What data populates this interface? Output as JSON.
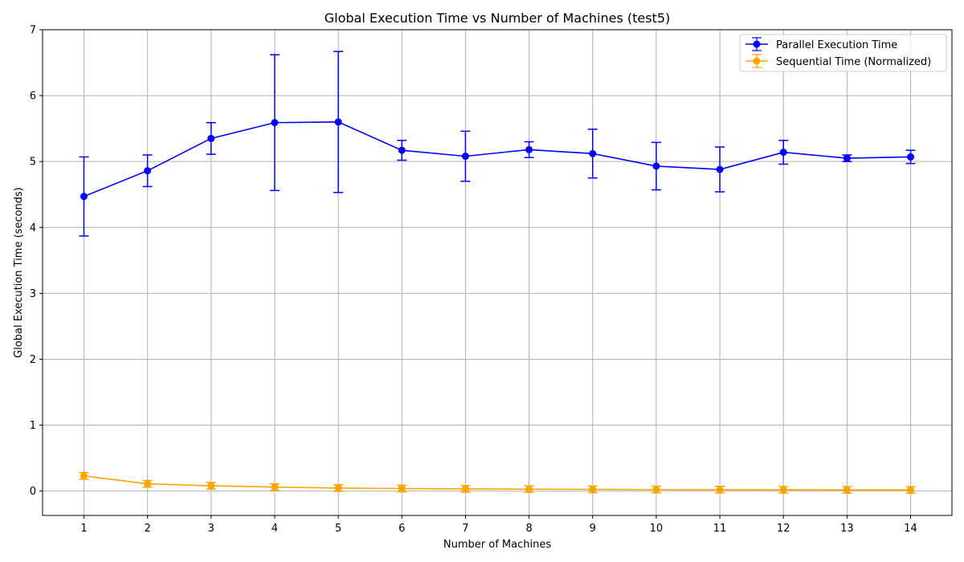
{
  "chart_data": {
    "type": "line",
    "title": "Global Execution Time vs Number of Machines (test5)",
    "xlabel": "Number of Machines",
    "ylabel": "Global Execution Time (seconds)",
    "x": [
      1,
      2,
      3,
      4,
      5,
      6,
      7,
      8,
      9,
      10,
      11,
      12,
      13,
      14
    ],
    "xlim": [
      0.35,
      14.65
    ],
    "ylim": [
      -0.37,
      7.0
    ],
    "yticks": [
      0,
      1,
      2,
      3,
      4,
      5,
      6,
      7
    ],
    "grid": true,
    "legend_position": "top-right",
    "series": [
      {
        "name": "Parallel Execution Time",
        "color": "#0000ff",
        "marker": "circle",
        "values": [
          4.47,
          4.86,
          5.35,
          5.59,
          5.6,
          5.17,
          5.08,
          5.18,
          5.12,
          4.93,
          4.88,
          5.14,
          5.05,
          5.07
        ],
        "errors": [
          0.6,
          0.24,
          0.24,
          1.03,
          1.07,
          0.15,
          0.38,
          0.12,
          0.37,
          0.36,
          0.34,
          0.18,
          0.05,
          0.1
        ]
      },
      {
        "name": "Sequential Time (Normalized)",
        "color": "#ffa500",
        "marker": "circle",
        "values": [
          0.23,
          0.11,
          0.08,
          0.06,
          0.045,
          0.038,
          0.033,
          0.029,
          0.026,
          0.023,
          0.021,
          0.019,
          0.018,
          0.017
        ],
        "errors": [
          0.05,
          0.05,
          0.05,
          0.05,
          0.05,
          0.05,
          0.05,
          0.05,
          0.05,
          0.05,
          0.05,
          0.05,
          0.05,
          0.05
        ]
      }
    ]
  }
}
